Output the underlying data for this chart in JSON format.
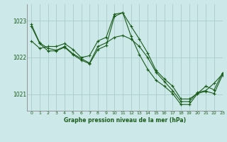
{
  "title": "Graphe pression niveau de la mer (hPa)",
  "bg_color": "#cce8e8",
  "grid_color": "#aacccc",
  "line_color": "#1a5c1a",
  "xlim": [
    -0.5,
    23
  ],
  "ylim": [
    1020.55,
    1023.45
  ],
  "yticks": [
    1021,
    1022,
    1023
  ],
  "xticks": [
    0,
    1,
    2,
    3,
    4,
    5,
    6,
    7,
    8,
    9,
    10,
    11,
    12,
    13,
    14,
    15,
    16,
    17,
    18,
    19,
    20,
    21,
    22,
    23
  ],
  "series": [
    [
      1022.9,
      1022.4,
      1022.25,
      1022.2,
      1022.3,
      1022.1,
      1021.97,
      1021.85,
      1022.3,
      1022.4,
      1022.55,
      1022.6,
      1022.5,
      1022.3,
      1022.0,
      1021.6,
      1021.35,
      1021.1,
      1020.8,
      1020.8,
      1021.05,
      1021.1,
      1021.3,
      1021.55
    ],
    [
      1022.45,
      1022.25,
      1022.3,
      1022.3,
      1022.38,
      1022.22,
      1022.0,
      1022.05,
      1022.45,
      1022.55,
      1023.18,
      1023.22,
      1022.85,
      1022.5,
      1022.12,
      1021.65,
      1021.42,
      1021.22,
      1020.87,
      1020.87,
      1021.02,
      1021.22,
      1021.12,
      1021.58
    ],
    [
      1022.85,
      1022.38,
      1022.18,
      1022.18,
      1022.28,
      1022.08,
      1021.93,
      1021.83,
      1022.22,
      1022.32,
      1023.12,
      1023.22,
      1022.58,
      1022.08,
      1021.68,
      1021.38,
      1021.22,
      1021.02,
      1020.72,
      1020.72,
      1021.02,
      1021.08,
      1021.02,
      1021.52
    ]
  ]
}
